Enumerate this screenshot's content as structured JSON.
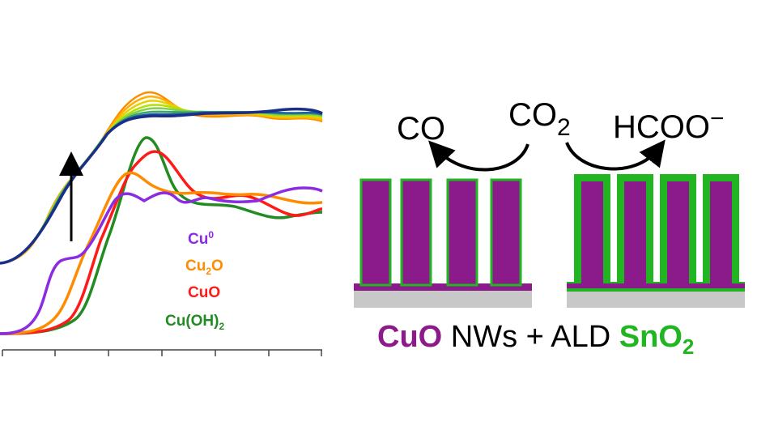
{
  "spectra_panel": {
    "legend": [
      {
        "base": "Cu",
        "sup": "0",
        "sub": "",
        "rest": "",
        "color": "#8b2be2"
      },
      {
        "base": "Cu",
        "sup": "",
        "sub": "2",
        "rest": "O",
        "color": "#ff8c00"
      },
      {
        "base": "CuO",
        "sup": "",
        "sub": "",
        "rest": "",
        "color": "#ff1a1a"
      },
      {
        "base": "Cu(OH)",
        "sup": "",
        "sub": "2",
        "rest": "",
        "color": "#228b22"
      }
    ],
    "colors": {
      "upper_series": [
        "#ff8c00",
        "#ffb000",
        "#e6d000",
        "#b5e000",
        "#7fd14a",
        "#3aa86a",
        "#1f5fa0",
        "#1a2f8a"
      ],
      "arrow": "#000000",
      "axis": "#444444"
    }
  },
  "schematic": {
    "reaction": {
      "left_product": "CO",
      "reactant_base": "CO",
      "reactant_sub": "2",
      "right_product_base": "HCOO",
      "right_product_sup": "−"
    },
    "caption": {
      "part1": "CuO",
      "part2": " NWs + ALD ",
      "part3_base": "SnO",
      "part3_sub": "2"
    },
    "colors": {
      "nanowire": "#8b1a8b",
      "coating": "#22b522",
      "substrate": "#c8c8c8",
      "cuo_text": "#8b1a8b",
      "sno2_text": "#22b522",
      "text": "#000000"
    }
  }
}
